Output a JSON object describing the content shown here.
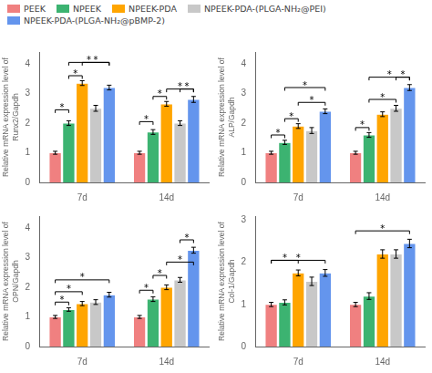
{
  "chart_data": [
    {
      "type": "bar",
      "legend": "upper left",
      "grid": false,
      "ylabel": "Relative mRNA expression level of\nRunx2/Gapdh",
      "categories": [
        "7d",
        "14d"
      ],
      "series": [
        {
          "name": "PEEK",
          "color": "#F08080",
          "values": [
            1.0,
            1.0
          ],
          "errors": [
            0.05,
            0.05
          ]
        },
        {
          "name": "NPEEK",
          "color": "#3CB371",
          "values": [
            2.0,
            1.7
          ],
          "errors": [
            0.08,
            0.08
          ]
        },
        {
          "name": "NPEEK-PDA",
          "color": "#FFA500",
          "values": [
            3.35,
            2.65
          ],
          "errors": [
            0.08,
            0.08
          ]
        },
        {
          "name": "NPEEK-PDA-(PLGA-NH₂@PEI)",
          "color": "#C8C8C8",
          "values": [
            2.5,
            2.0
          ],
          "errors": [
            0.1,
            0.08
          ]
        },
        {
          "name": "NPEEK-PDA-(PLGA-NH₂@pBMP-2)",
          "color": "#6495ED",
          "values": [
            3.2,
            2.8
          ],
          "errors": [
            0.08,
            0.1
          ]
        }
      ],
      "ylim": [
        0,
        4.4
      ],
      "yticks": [
        0,
        1,
        2,
        3,
        4
      ],
      "annotations": [
        {
          "text": "*",
          "category": "7d",
          "from": "PEEK",
          "to": "NPEEK",
          "y": 2.45
        },
        {
          "text": "*",
          "category": "7d",
          "from": "NPEEK",
          "to": "NPEEK-PDA",
          "y": 3.6
        },
        {
          "text": "*",
          "category": "7d",
          "from": "NPEEK-PDA",
          "to": "NPEEK-PDA-(PLGA-NH₂@pBMP-2)",
          "y": 4.05
        },
        {
          "text": "*",
          "category": "7d",
          "from": "NPEEK",
          "to": "NPEEK-PDA-(PLGA-NH₂@pBMP-2)",
          "y": 4.05
        },
        {
          "text": "*",
          "category": "14d",
          "from": "PEEK",
          "to": "NPEEK",
          "y": 2.05
        },
        {
          "text": "*",
          "category": "14d",
          "from": "NPEEK",
          "to": "NPEEK-PDA",
          "y": 2.9
        },
        {
          "text": "*",
          "category": "14d",
          "from": "NPEEK-PDA",
          "to": "NPEEK-PDA-(PLGA-NH₂@pBMP-2)",
          "y": 3.15
        },
        {
          "text": "*",
          "category": "14d",
          "from": "NPEEK-PDA-(PLGA-NH₂@PEI)",
          "to": "NPEEK-PDA-(PLGA-NH₂@pBMP-2)",
          "y": 3.15
        }
      ]
    },
    {
      "type": "bar",
      "grid": false,
      "ylabel": "Relative mRNA expression level of\nALP/Gapdh",
      "categories": [
        "7d",
        "14d"
      ],
      "series": [
        {
          "name": "PEEK",
          "color": "#F08080",
          "values": [
            1.0,
            1.0
          ],
          "errors": [
            0.05,
            0.05
          ]
        },
        {
          "name": "NPEEK",
          "color": "#3CB371",
          "values": [
            1.35,
            1.6
          ],
          "errors": [
            0.07,
            0.08
          ]
        },
        {
          "name": "NPEEK-PDA",
          "color": "#FFA500",
          "values": [
            1.9,
            2.3
          ],
          "errors": [
            0.08,
            0.08
          ]
        },
        {
          "name": "NPEEK-PDA-(PLGA-NH₂@PEI)",
          "color": "#C8C8C8",
          "values": [
            1.75,
            2.5
          ],
          "errors": [
            0.1,
            0.1
          ]
        },
        {
          "name": "NPEEK-PDA-(PLGA-NH₂@pBMP-2)",
          "color": "#6495ED",
          "values": [
            2.4,
            3.2
          ],
          "errors": [
            0.08,
            0.1
          ]
        }
      ],
      "ylim": [
        0,
        4.4
      ],
      "yticks": [
        0,
        1,
        2,
        3,
        4
      ],
      "annotations": [
        {
          "text": "*",
          "category": "7d",
          "from": "PEEK",
          "to": "NPEEK",
          "y": 1.6
        },
        {
          "text": "*",
          "category": "7d",
          "from": "NPEEK",
          "to": "NPEEK-PDA",
          "y": 2.15
        },
        {
          "text": "*",
          "category": "7d",
          "from": "NPEEK-PDA",
          "to": "NPEEK-PDA-(PLGA-NH₂@pBMP-2)",
          "y": 2.7
        },
        {
          "text": "*",
          "category": "7d",
          "from": "NPEEK",
          "to": "NPEEK-PDA-(PLGA-NH₂@pBMP-2)",
          "y": 3.2
        },
        {
          "text": "*",
          "category": "14d",
          "from": "PEEK",
          "to": "NPEEK",
          "y": 1.85
        },
        {
          "text": "*",
          "category": "14d",
          "from": "NPEEK",
          "to": "NPEEK-PDA-(PLGA-NH₂@PEI)",
          "y": 2.8
        },
        {
          "text": "*",
          "category": "14d",
          "from": "NPEEK",
          "to": "NPEEK-PDA-(PLGA-NH₂@pBMP-2)",
          "y": 3.55
        },
        {
          "text": "*",
          "category": "14d",
          "from": "NPEEK-PDA-(PLGA-NH₂@PEI)",
          "to": "NPEEK-PDA-(PLGA-NH₂@pBMP-2)",
          "y": 3.55
        }
      ]
    },
    {
      "type": "bar",
      "grid": false,
      "ylabel": "Relative mRNA expression level of\nOPN/Gapdh",
      "categories": [
        "7d",
        "14d"
      ],
      "series": [
        {
          "name": "PEEK",
          "color": "#F08080",
          "values": [
            1.0,
            1.0
          ],
          "errors": [
            0.05,
            0.05
          ]
        },
        {
          "name": "NPEEK",
          "color": "#3CB371",
          "values": [
            1.25,
            1.6
          ],
          "errors": [
            0.06,
            0.08
          ]
        },
        {
          "name": "NPEEK-PDA",
          "color": "#FFA500",
          "values": [
            1.45,
            2.0
          ],
          "errors": [
            0.07,
            0.08
          ]
        },
        {
          "name": "NPEEK-PDA-(PLGA-NH₂@PEI)",
          "color": "#C8C8C8",
          "values": [
            1.5,
            2.25
          ],
          "errors": [
            0.08,
            0.08
          ]
        },
        {
          "name": "NPEEK-PDA-(PLGA-NH₂@pBMP-2)",
          "color": "#6495ED",
          "values": [
            1.75,
            3.25
          ],
          "errors": [
            0.08,
            0.1
          ]
        }
      ],
      "ylim": [
        0,
        4.4
      ],
      "yticks": [
        0,
        1,
        2,
        3,
        4
      ],
      "annotations": [
        {
          "text": "*",
          "category": "7d",
          "from": "PEEK",
          "to": "NPEEK",
          "y": 1.5
        },
        {
          "text": "*",
          "category": "7d",
          "from": "PEEK",
          "to": "NPEEK-PDA",
          "y": 1.85
        },
        {
          "text": "*",
          "category": "7d",
          "from": "PEEK",
          "to": "NPEEK-PDA-(PLGA-NH₂@pBMP-2)",
          "y": 2.25
        },
        {
          "text": "*",
          "category": "14d",
          "from": "PEEK",
          "to": "NPEEK",
          "y": 1.9
        },
        {
          "text": "*",
          "category": "14d",
          "from": "NPEEK",
          "to": "NPEEK-PDA",
          "y": 2.4
        },
        {
          "text": "*",
          "category": "14d",
          "from": "NPEEK-PDA",
          "to": "NPEEK-PDA-(PLGA-NH₂@pBMP-2)",
          "y": 2.85
        },
        {
          "text": "*",
          "category": "14d",
          "from": "NPEEK-PDA-(PLGA-NH₂@PEI)",
          "to": "NPEEK-PDA-(PLGA-NH₂@pBMP-2)",
          "y": 3.6
        }
      ]
    },
    {
      "type": "bar",
      "grid": false,
      "ylabel": "Relative mRNA expression level of\nCol-1/Gapdh",
      "categories": [
        "7d",
        "14d"
      ],
      "series": [
        {
          "name": "PEEK",
          "color": "#F08080",
          "values": [
            1.0,
            1.0
          ],
          "errors": [
            0.05,
            0.05
          ]
        },
        {
          "name": "NPEEK",
          "color": "#3CB371",
          "values": [
            1.05,
            1.2
          ],
          "errors": [
            0.06,
            0.08
          ]
        },
        {
          "name": "NPEEK-PDA",
          "color": "#FFA500",
          "values": [
            1.75,
            2.2
          ],
          "errors": [
            0.07,
            0.1
          ]
        },
        {
          "name": "NPEEK-PDA-(PLGA-NH₂@PEI)",
          "color": "#C8C8C8",
          "values": [
            1.55,
            2.2
          ],
          "errors": [
            0.1,
            0.1
          ]
        },
        {
          "name": "NPEEK-PDA-(PLGA-NH₂@pBMP-2)",
          "color": "#6495ED",
          "values": [
            1.75,
            2.45
          ],
          "errors": [
            0.08,
            0.1
          ]
        }
      ],
      "ylim": [
        0,
        3.1
      ],
      "yticks": [
        0,
        1,
        2,
        3
      ],
      "annotations": [
        {
          "text": "*",
          "category": "7d",
          "from": "PEEK",
          "to": "NPEEK-PDA",
          "y": 2.05
        },
        {
          "text": "*",
          "category": "7d",
          "from": "PEEK",
          "to": "NPEEK-PDA-(PLGA-NH₂@pBMP-2)",
          "y": 2.05
        },
        {
          "text": "*",
          "category": "14d",
          "from": "PEEK",
          "to": "NPEEK-PDA-(PLGA-NH₂@pBMP-2)",
          "y": 2.75
        }
      ]
    }
  ]
}
